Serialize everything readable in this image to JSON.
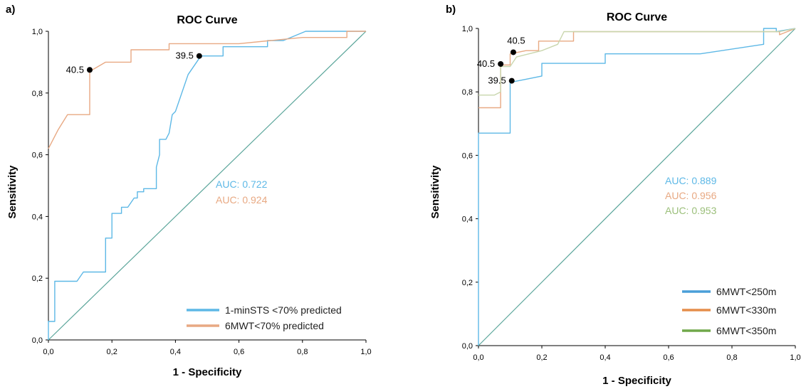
{
  "chart_data": [
    {
      "type": "line",
      "panel_label": "a)",
      "title": "ROC Curve",
      "xlabel": "1 - Specificity",
      "ylabel": "Sensitivity",
      "xlim": [
        0,
        1
      ],
      "ylim": [
        0,
        1
      ],
      "ticks": [
        "0,0",
        "0,2",
        "0,4",
        "0,6",
        "0,8",
        "1,0"
      ],
      "tick_values": [
        0,
        0.2,
        0.4,
        0.6,
        0.8,
        1.0
      ],
      "grid": false,
      "legend_position": "bottom-right",
      "reference_color": "#5aa59a",
      "series": [
        {
          "name": "1-minSTS <70% predicted",
          "color": "#5db8e6",
          "points": [
            [
              0,
              0
            ],
            [
              0,
              0.06
            ],
            [
              0.02,
              0.06
            ],
            [
              0.02,
              0.19
            ],
            [
              0.09,
              0.19
            ],
            [
              0.11,
              0.22
            ],
            [
              0.18,
              0.22
            ],
            [
              0.18,
              0.33
            ],
            [
              0.2,
              0.33
            ],
            [
              0.2,
              0.41
            ],
            [
              0.23,
              0.41
            ],
            [
              0.23,
              0.43
            ],
            [
              0.25,
              0.43
            ],
            [
              0.27,
              0.46
            ],
            [
              0.28,
              0.46
            ],
            [
              0.28,
              0.48
            ],
            [
              0.3,
              0.48
            ],
            [
              0.3,
              0.49
            ],
            [
              0.34,
              0.49
            ],
            [
              0.34,
              0.56
            ],
            [
              0.35,
              0.6
            ],
            [
              0.35,
              0.65
            ],
            [
              0.37,
              0.65
            ],
            [
              0.38,
              0.67
            ],
            [
              0.39,
              0.73
            ],
            [
              0.4,
              0.74
            ],
            [
              0.42,
              0.8
            ],
            [
              0.44,
              0.86
            ],
            [
              0.46,
              0.89
            ],
            [
              0.48,
              0.92
            ],
            [
              0.55,
              0.92
            ],
            [
              0.55,
              0.95
            ],
            [
              0.69,
              0.95
            ],
            [
              0.69,
              0.97
            ],
            [
              0.74,
              0.97
            ],
            [
              0.81,
              1.0
            ],
            [
              1.0,
              1.0
            ]
          ]
        },
        {
          "name": "6MWT<70% predicted",
          "color": "#e8a983",
          "points": [
            [
              0,
              0.62
            ],
            [
              0.03,
              0.68
            ],
            [
              0.06,
              0.73
            ],
            [
              0.13,
              0.73
            ],
            [
              0.13,
              0.87
            ],
            [
              0.18,
              0.9
            ],
            [
              0.26,
              0.9
            ],
            [
              0.26,
              0.94
            ],
            [
              0.38,
              0.94
            ],
            [
              0.38,
              0.96
            ],
            [
              0.6,
              0.96
            ],
            [
              0.7,
              0.97
            ],
            [
              0.8,
              0.98
            ],
            [
              0.94,
              0.98
            ],
            [
              0.94,
              1.0
            ],
            [
              1.0,
              1.0
            ]
          ]
        }
      ],
      "cutoffs": [
        {
          "label": "40.5",
          "series": "6MWT<70% predicted",
          "x": 0.13,
          "y": 0.875,
          "label_side": "left"
        },
        {
          "label": "39.5",
          "series": "1-minSTS <70% predicted",
          "x": 0.475,
          "y": 0.92,
          "label_side": "left"
        }
      ],
      "auc": [
        {
          "text": "AUC: 0.722",
          "color": "#5db8e6"
        },
        {
          "text": "AUC: 0.924",
          "color": "#e8a983"
        }
      ]
    },
    {
      "type": "line",
      "panel_label": "b)",
      "title": "ROC Curve",
      "xlabel": "1 - Specificity",
      "ylabel": "Sensitivity",
      "xlim": [
        0,
        1
      ],
      "ylim": [
        0,
        1
      ],
      "ticks": [
        "0,0",
        "0,2",
        "0,4",
        "0,6",
        "0,8",
        "1,0"
      ],
      "tick_values": [
        0,
        0.2,
        0.4,
        0.6,
        0.8,
        1.0
      ],
      "grid": false,
      "legend_position": "bottom-right",
      "reference_color": "#5aa59a",
      "series": [
        {
          "name": "6MWT<250m",
          "color": "#5db8e6",
          "points": [
            [
              0,
              0
            ],
            [
              0,
              0.67
            ],
            [
              0.1,
              0.67
            ],
            [
              0.1,
              0.83
            ],
            [
              0.15,
              0.84
            ],
            [
              0.2,
              0.85
            ],
            [
              0.2,
              0.89
            ],
            [
              0.4,
              0.89
            ],
            [
              0.4,
              0.92
            ],
            [
              0.7,
              0.92
            ],
            [
              0.9,
              0.95
            ],
            [
              0.9,
              1.0
            ],
            [
              0.94,
              1.0
            ],
            [
              0.94,
              0.99
            ],
            [
              1.0,
              1.0
            ]
          ]
        },
        {
          "name": "6MWT<330m",
          "color": "#e8a983",
          "points": [
            [
              0,
              0.75
            ],
            [
              0.07,
              0.75
            ],
            [
              0.07,
              0.885
            ],
            [
              0.1,
              0.885
            ],
            [
              0.1,
              0.92
            ],
            [
              0.15,
              0.93
            ],
            [
              0.19,
              0.93
            ],
            [
              0.19,
              0.96
            ],
            [
              0.3,
              0.96
            ],
            [
              0.3,
              0.99
            ],
            [
              0.95,
              0.99
            ],
            [
              0.95,
              0.98
            ],
            [
              1.0,
              1.0
            ]
          ]
        },
        {
          "name": "6MWT<350m",
          "color": "#c9d6ad",
          "points": [
            [
              0,
              0.79
            ],
            [
              0.05,
              0.79
            ],
            [
              0.07,
              0.8
            ],
            [
              0.07,
              0.88
            ],
            [
              0.1,
              0.88
            ],
            [
              0.12,
              0.91
            ],
            [
              0.2,
              0.93
            ],
            [
              0.25,
              0.95
            ],
            [
              0.27,
              0.99
            ],
            [
              0.95,
              0.99
            ],
            [
              1.0,
              1.0
            ]
          ]
        }
      ],
      "legend_colors": [
        "#4a9fd8",
        "#e58d4a",
        "#70a84a"
      ],
      "cutoffs": [
        {
          "label": "40.5",
          "series": "6MWT<330m",
          "x": 0.11,
          "y": 0.925,
          "label_side": "above"
        },
        {
          "label": "40.5",
          "series": "6MWT<350m",
          "x": 0.07,
          "y": 0.888,
          "label_side": "left"
        },
        {
          "label": "39.5",
          "series": "6MWT<250m",
          "x": 0.105,
          "y": 0.835,
          "label_side": "left"
        }
      ],
      "auc": [
        {
          "text": "AUC: 0.889",
          "color": "#5db8e6"
        },
        {
          "text": "AUC: 0.956",
          "color": "#e8a983"
        },
        {
          "text": "AUC: 0.953",
          "color": "#9bbf7a"
        }
      ]
    }
  ]
}
